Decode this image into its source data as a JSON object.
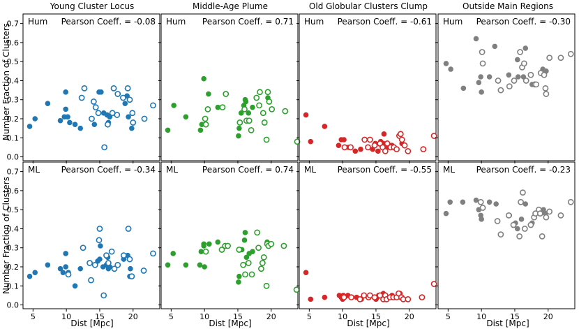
{
  "figure": {
    "ylabel": "Number Fraction of Clusters",
    "xlabel": "Dist [Mpc]",
    "x_ticks": [
      5,
      10,
      15,
      20
    ],
    "y_ticks": [
      0.0,
      0.1,
      0.2,
      0.3,
      0.4,
      0.5,
      0.6,
      0.7
    ],
    "x_range": [
      3.5,
      24
    ],
    "y_range": [
      -0.02,
      0.75
    ],
    "y_tick_labels": [
      "0.0",
      "0.1",
      "0.2",
      "0.3",
      "0.4",
      "0.5",
      "0.6",
      "0.7"
    ],
    "x_tick_labels": [
      "5",
      "10",
      "15",
      "20"
    ]
  },
  "columns": [
    {
      "title": "Young Cluster Locus",
      "color": "#1f77b4"
    },
    {
      "title": "Middle-Age Plume",
      "color": "#2ca02c"
    },
    {
      "title": "Old Globular Clusters Clump",
      "color": "#d62728"
    },
    {
      "title": "Outside Main Regions",
      "color": "#808080"
    }
  ],
  "rows": [
    {
      "tag": "Hum"
    },
    {
      "tag": "ML"
    }
  ],
  "chart_data": [
    {
      "type": "scatter",
      "row": "Hum",
      "column": "Young Cluster Locus",
      "annotation": "Pearson Coeff. = -0.08",
      "filled": [
        [
          4.5,
          0.16
        ],
        [
          5.3,
          0.2
        ],
        [
          7.2,
          0.28
        ],
        [
          9.1,
          0.19
        ],
        [
          9.7,
          0.21
        ],
        [
          9.9,
          0.34
        ],
        [
          9.9,
          0.25
        ],
        [
          10.2,
          0.21
        ],
        [
          10.5,
          0.18
        ],
        [
          11.3,
          0.17
        ],
        [
          12.1,
          0.15
        ],
        [
          14.2,
          0.17
        ],
        [
          14.9,
          0.34
        ],
        [
          15.2,
          0.34
        ],
        [
          15.6,
          0.23
        ],
        [
          16.1,
          0.22
        ],
        [
          16.3,
          0.18
        ],
        [
          16.5,
          0.21
        ],
        [
          18.8,
          0.28
        ],
        [
          19.1,
          0.32
        ],
        [
          19.3,
          0.21
        ],
        [
          19.8,
          0.15
        ]
      ],
      "open": [
        [
          12.3,
          0.31
        ],
        [
          12.7,
          0.36
        ],
        [
          13.8,
          0.2
        ],
        [
          14.1,
          0.29
        ],
        [
          14.4,
          0.26
        ],
        [
          14.8,
          0.23
        ],
        [
          15.7,
          0.05
        ],
        [
          16.2,
          0.17
        ],
        [
          16.9,
          0.23
        ],
        [
          17.1,
          0.36
        ],
        [
          17.6,
          0.22
        ],
        [
          17.7,
          0.33
        ],
        [
          18.5,
          0.31
        ],
        [
          19.2,
          0.36
        ],
        [
          19.5,
          0.3
        ],
        [
          19.9,
          0.23
        ],
        [
          20.0,
          0.18
        ],
        [
          21.7,
          0.2
        ],
        [
          23.0,
          0.27
        ]
      ]
    },
    {
      "type": "scatter",
      "row": "Hum",
      "column": "Middle-Age Plume",
      "annotation": "Pearson Coeff. = 0.71",
      "filled": [
        [
          4.5,
          0.14
        ],
        [
          5.4,
          0.27
        ],
        [
          7.2,
          0.21
        ],
        [
          9.4,
          0.14
        ],
        [
          9.6,
          0.17
        ],
        [
          9.9,
          0.41
        ],
        [
          10.6,
          0.33
        ],
        [
          12.0,
          0.26
        ],
        [
          15.1,
          0.11
        ],
        [
          15.2,
          0.15
        ],
        [
          15.5,
          0.23
        ],
        [
          15.9,
          0.27
        ],
        [
          16.1,
          0.3
        ],
        [
          16.2,
          0.29
        ],
        [
          16.6,
          0.23
        ],
        [
          17.2,
          0.26
        ],
        [
          19.5,
          0.31
        ]
      ],
      "open": [
        [
          10.1,
          0.2
        ],
        [
          10.2,
          0.17
        ],
        [
          10.5,
          0.25
        ],
        [
          12.7,
          0.26
        ],
        [
          13.2,
          0.33
        ],
        [
          15.3,
          0.18
        ],
        [
          16.0,
          0.25
        ],
        [
          16.3,
          0.19
        ],
        [
          16.7,
          0.19
        ],
        [
          17.0,
          0.14
        ],
        [
          17.8,
          0.31
        ],
        [
          18.2,
          0.27
        ],
        [
          18.3,
          0.34
        ],
        [
          18.8,
          0.23
        ],
        [
          19.0,
          0.18
        ],
        [
          19.3,
          0.09
        ],
        [
          19.5,
          0.34
        ],
        [
          19.7,
          0.29
        ],
        [
          20.1,
          0.25
        ],
        [
          22.1,
          0.24
        ],
        [
          23.9,
          0.08
        ]
      ]
    },
    {
      "type": "scatter",
      "row": "Hum",
      "column": "Old Globular Clusters Clump",
      "annotation": "Pearson Coeff. = -0.61",
      "filled": [
        [
          4.5,
          0.22
        ],
        [
          5.2,
          0.08
        ],
        [
          7.3,
          0.16
        ],
        [
          9.4,
          0.06
        ],
        [
          9.8,
          0.09
        ],
        [
          10.2,
          0.09
        ],
        [
          10.9,
          0.05
        ],
        [
          11.9,
          0.03
        ],
        [
          12.7,
          0.04
        ],
        [
          14.5,
          0.04
        ],
        [
          14.9,
          0.07
        ],
        [
          15.3,
          0.03
        ],
        [
          15.7,
          0.08
        ],
        [
          16.1,
          0.07
        ],
        [
          16.2,
          0.12
        ],
        [
          16.7,
          0.05
        ],
        [
          17.4,
          0.06
        ],
        [
          18.9,
          0.07
        ]
      ],
      "open": [
        [
          10.3,
          0.05
        ],
        [
          11.2,
          0.05
        ],
        [
          13.3,
          0.09
        ],
        [
          13.8,
          0.05
        ],
        [
          14.1,
          0.09
        ],
        [
          14.8,
          0.06
        ],
        [
          15.6,
          0.07
        ],
        [
          16.0,
          0.05
        ],
        [
          16.4,
          0.03
        ],
        [
          16.7,
          0.07
        ],
        [
          17.2,
          0.05
        ],
        [
          17.7,
          0.05
        ],
        [
          18.1,
          0.04
        ],
        [
          18.5,
          0.11
        ],
        [
          18.7,
          0.12
        ],
        [
          18.9,
          0.09
        ],
        [
          19.3,
          0.06
        ],
        [
          19.8,
          0.03
        ],
        [
          22.1,
          0.04
        ],
        [
          23.7,
          0.11
        ]
      ]
    },
    {
      "type": "scatter",
      "row": "Hum",
      "column": "Outside Main Regions",
      "annotation": "Pearson Coeff. = -0.30",
      "filled": [
        [
          4.7,
          0.49
        ],
        [
          5.4,
          0.46
        ],
        [
          7.3,
          0.36
        ],
        [
          9.2,
          0.62
        ],
        [
          9.6,
          0.39
        ],
        [
          9.9,
          0.42
        ],
        [
          10.0,
          0.34
        ],
        [
          11.2,
          0.42
        ],
        [
          12.0,
          0.58
        ],
        [
          14.1,
          0.43
        ],
        [
          15.4,
          0.51
        ],
        [
          15.5,
          0.42
        ],
        [
          16.3,
          0.42
        ],
        [
          16.6,
          0.57
        ],
        [
          17.6,
          0.38
        ],
        [
          19.1,
          0.44
        ],
        [
          19.2,
          0.46
        ],
        [
          19.7,
          0.45
        ]
      ],
      "open": [
        [
          10.1,
          0.55
        ],
        [
          10.2,
          0.49
        ],
        [
          12.5,
          0.4
        ],
        [
          12.9,
          0.35
        ],
        [
          14.2,
          0.37
        ],
        [
          14.9,
          0.4
        ],
        [
          15.8,
          0.55
        ],
        [
          16.1,
          0.47
        ],
        [
          16.4,
          0.49
        ],
        [
          16.7,
          0.4
        ],
        [
          17.4,
          0.43
        ],
        [
          18.0,
          0.38
        ],
        [
          18.2,
          0.38
        ],
        [
          18.9,
          0.44
        ],
        [
          19.4,
          0.43
        ],
        [
          19.6,
          0.36
        ],
        [
          19.7,
          0.33
        ],
        [
          20.2,
          0.52
        ],
        [
          21.9,
          0.52
        ],
        [
          23.4,
          0.54
        ]
      ]
    },
    {
      "type": "scatter",
      "row": "ML",
      "column": "Young Cluster Locus",
      "annotation": "Pearson Coeff. = -0.34",
      "filled": [
        [
          4.5,
          0.15
        ],
        [
          5.3,
          0.17
        ],
        [
          7.2,
          0.21
        ],
        [
          9.1,
          0.19
        ],
        [
          9.5,
          0.17
        ],
        [
          9.9,
          0.2
        ],
        [
          9.9,
          0.27
        ],
        [
          10.3,
          0.17
        ],
        [
          11.3,
          0.1
        ],
        [
          12.1,
          0.19
        ],
        [
          14.7,
          0.23
        ],
        [
          15.0,
          0.24
        ],
        [
          15.1,
          0.31
        ],
        [
          15.5,
          0.2
        ],
        [
          16.0,
          0.21
        ],
        [
          16.2,
          0.25
        ],
        [
          16.3,
          0.19
        ],
        [
          16.5,
          0.2
        ],
        [
          18.6,
          0.24
        ],
        [
          19.2,
          0.26
        ],
        [
          19.5,
          0.15
        ],
        [
          19.6,
          0.19
        ]
      ],
      "open": [
        [
          10.3,
          0.16
        ],
        [
          12.5,
          0.3
        ],
        [
          13.5,
          0.22
        ],
        [
          13.7,
          0.13
        ],
        [
          14.3,
          0.21
        ],
        [
          14.9,
          0.34
        ],
        [
          15.0,
          0.4
        ],
        [
          15.6,
          0.05
        ],
        [
          16.0,
          0.26
        ],
        [
          16.3,
          0.22
        ],
        [
          16.8,
          0.28
        ],
        [
          17.2,
          0.19
        ],
        [
          17.7,
          0.21
        ],
        [
          18.6,
          0.26
        ],
        [
          19.3,
          0.4
        ],
        [
          19.5,
          0.24
        ],
        [
          19.8,
          0.15
        ],
        [
          21.6,
          0.18
        ],
        [
          23.0,
          0.27
        ]
      ]
    },
    {
      "type": "scatter",
      "row": "ML",
      "column": "Middle-Age Plume",
      "annotation": "Pearson Coeff. = 0.74",
      "filled": [
        [
          4.5,
          0.21
        ],
        [
          5.3,
          0.27
        ],
        [
          7.2,
          0.21
        ],
        [
          9.3,
          0.21
        ],
        [
          9.5,
          0.28
        ],
        [
          9.9,
          0.31
        ],
        [
          9.9,
          0.32
        ],
        [
          10.0,
          0.2
        ],
        [
          10.7,
          0.32
        ],
        [
          12.0,
          0.33
        ],
        [
          15.1,
          0.12
        ],
        [
          15.2,
          0.15
        ],
        [
          15.6,
          0.29
        ],
        [
          16.0,
          0.34
        ],
        [
          16.1,
          0.38
        ],
        [
          16.3,
          0.25
        ],
        [
          16.7,
          0.27
        ],
        [
          17.2,
          0.28
        ],
        [
          19.4,
          0.33
        ]
      ],
      "open": [
        [
          10.2,
          0.28
        ],
        [
          12.6,
          0.29
        ],
        [
          13.1,
          0.31
        ],
        [
          13.5,
          0.31
        ],
        [
          15.2,
          0.29
        ],
        [
          15.8,
          0.21
        ],
        [
          16.1,
          0.16
        ],
        [
          16.6,
          0.22
        ],
        [
          17.1,
          0.16
        ],
        [
          17.9,
          0.38
        ],
        [
          18.1,
          0.3
        ],
        [
          18.5,
          0.19
        ],
        [
          18.7,
          0.22
        ],
        [
          18.9,
          0.25
        ],
        [
          19.3,
          0.1
        ],
        [
          19.4,
          0.32
        ],
        [
          19.6,
          0.31
        ],
        [
          20.0,
          0.32
        ],
        [
          21.9,
          0.31
        ],
        [
          23.8,
          0.08
        ]
      ]
    },
    {
      "type": "scatter",
      "row": "ML",
      "column": "Old Globular Clusters Clump",
      "annotation": "Pearson Coeff. = -0.55",
      "filled": [
        [
          4.5,
          0.17
        ],
        [
          5.2,
          0.03
        ],
        [
          7.3,
          0.04
        ],
        [
          9.5,
          0.05
        ],
        [
          9.8,
          0.04
        ],
        [
          10.0,
          0.03
        ],
        [
          10.1,
          0.05
        ],
        [
          10.8,
          0.05
        ],
        [
          12.1,
          0.04
        ],
        [
          12.8,
          0.03
        ],
        [
          15.0,
          0.03
        ],
        [
          15.2,
          0.04
        ],
        [
          15.4,
          0.05
        ],
        [
          16.1,
          0.06
        ],
        [
          16.3,
          0.05
        ],
        [
          16.7,
          0.04
        ],
        [
          17.4,
          0.05
        ],
        [
          18.6,
          0.06
        ],
        [
          18.9,
          0.04
        ]
      ],
      "open": [
        [
          10.2,
          0.04
        ],
        [
          11.3,
          0.04
        ],
        [
          12.6,
          0.03
        ],
        [
          13.2,
          0.05
        ],
        [
          13.9,
          0.04
        ],
        [
          14.1,
          0.05
        ],
        [
          14.8,
          0.04
        ],
        [
          15.6,
          0.05
        ],
        [
          16.1,
          0.03
        ],
        [
          16.4,
          0.05
        ],
        [
          16.6,
          0.03
        ],
        [
          17.1,
          0.04
        ],
        [
          17.6,
          0.04
        ],
        [
          18.1,
          0.04
        ],
        [
          18.4,
          0.06
        ],
        [
          18.8,
          0.04
        ],
        [
          19.1,
          0.03
        ],
        [
          19.8,
          0.03
        ],
        [
          21.9,
          0.04
        ],
        [
          23.7,
          0.11
        ]
      ]
    },
    {
      "type": "scatter",
      "row": "ML",
      "column": "Outside Main Regions",
      "annotation": "Pearson Coeff. = -0.23",
      "filled": [
        [
          4.7,
          0.48
        ],
        [
          5.3,
          0.54
        ],
        [
          7.2,
          0.54
        ],
        [
          9.2,
          0.55
        ],
        [
          9.6,
          0.5
        ],
        [
          9.9,
          0.47
        ],
        [
          10.0,
          0.45
        ],
        [
          11.2,
          0.54
        ],
        [
          12.2,
          0.53
        ],
        [
          14.2,
          0.47
        ],
        [
          15.1,
          0.43
        ],
        [
          15.4,
          0.4
        ],
        [
          16.0,
          0.45
        ],
        [
          16.6,
          0.53
        ],
        [
          17.6,
          0.43
        ],
        [
          18.9,
          0.48
        ],
        [
          19.3,
          0.5
        ],
        [
          19.6,
          0.48
        ]
      ],
      "open": [
        [
          9.9,
          0.54
        ],
        [
          10.2,
          0.51
        ],
        [
          12.4,
          0.44
        ],
        [
          12.9,
          0.37
        ],
        [
          14.1,
          0.47
        ],
        [
          14.8,
          0.42
        ],
        [
          15.7,
          0.36
        ],
        [
          15.9,
          0.54
        ],
        [
          16.2,
          0.59
        ],
        [
          16.5,
          0.4
        ],
        [
          17.4,
          0.42
        ],
        [
          17.9,
          0.46
        ],
        [
          18.1,
          0.48
        ],
        [
          18.6,
          0.5
        ],
        [
          18.8,
          0.48
        ],
        [
          19.1,
          0.36
        ],
        [
          19.7,
          0.46
        ],
        [
          20.2,
          0.49
        ],
        [
          21.9,
          0.47
        ],
        [
          23.4,
          0.54
        ]
      ]
    }
  ]
}
